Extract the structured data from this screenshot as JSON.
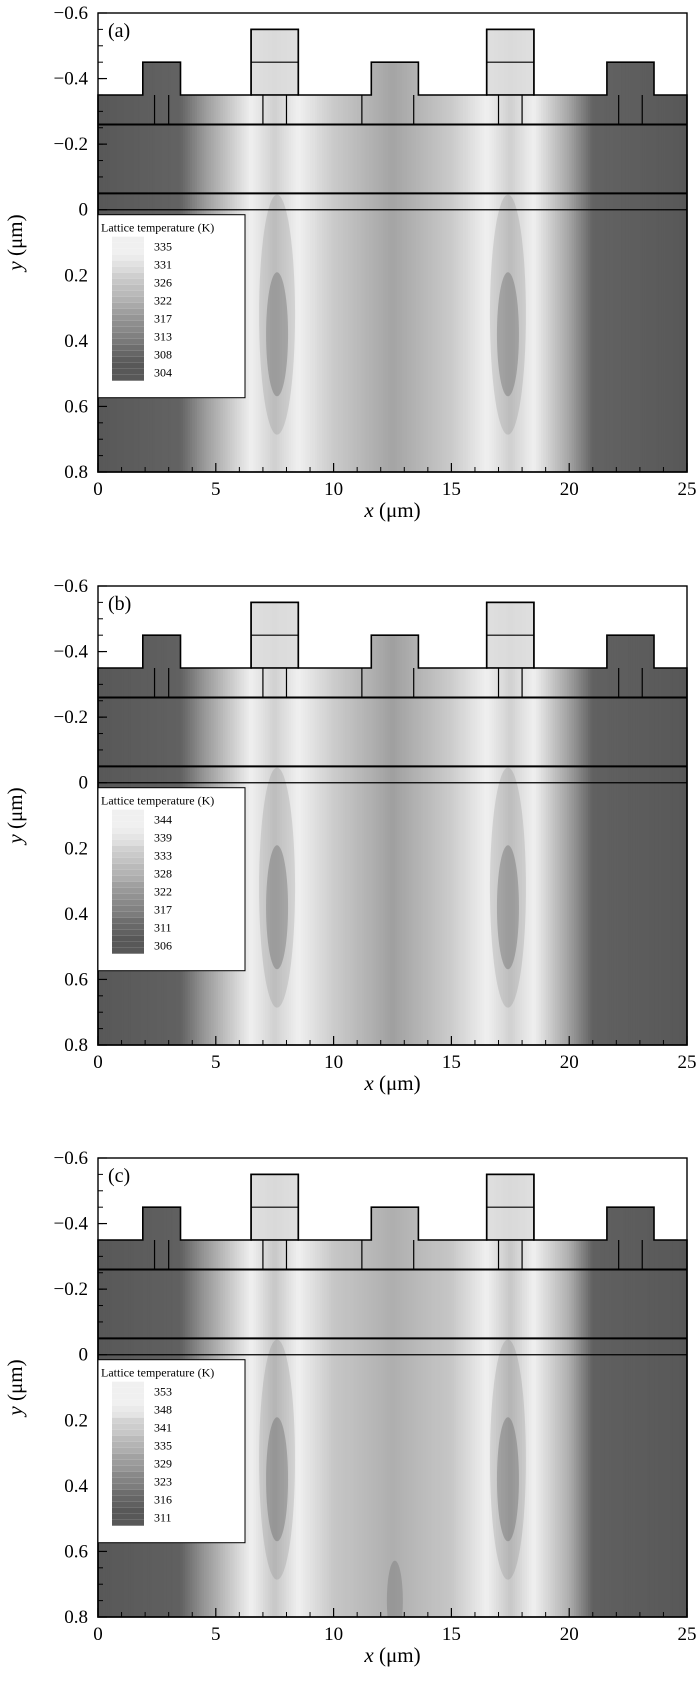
{
  "chart_data": [
    {
      "type": "heatmap",
      "panel_label": "(a)",
      "xlabel_var": "x",
      "xlabel_unit": " (μm)",
      "ylabel_var": "y",
      "ylabel_unit": " (μm)",
      "xlim": [
        0,
        25
      ],
      "ylim": [
        -0.6,
        0.8
      ],
      "x_ticks": [
        0,
        5,
        10,
        15,
        20,
        25
      ],
      "x_tick_labels": [
        "0",
        "5",
        "10",
        "15",
        "20",
        "25"
      ],
      "y_ticks": [
        -0.6,
        -0.4,
        -0.2,
        0,
        0.2,
        0.4,
        0.6,
        0.8
      ],
      "y_tick_labels": [
        "−0.6",
        "−0.4",
        "−0.2",
        "0",
        "0.2",
        "0.4",
        "0.6",
        "0.8"
      ],
      "legend_title": "Lattice temperature (K)",
      "legend_values": [
        "335",
        "331",
        "326",
        "322",
        "317",
        "313",
        "308",
        "304"
      ],
      "temperature_profile": {
        "x": [
          0,
          3.5,
          4.5,
          6.5,
          7.5,
          8.5,
          10,
          12.5,
          15,
          16.5,
          17.5,
          18.5,
          20,
          21,
          25
        ],
        "T": [
          304,
          306,
          316,
          332,
          326,
          332,
          325,
          318,
          325,
          332,
          326,
          332,
          318,
          306,
          304
        ]
      }
    },
    {
      "type": "heatmap",
      "panel_label": "(b)",
      "xlabel_var": "x",
      "xlabel_unit": " (μm)",
      "ylabel_var": "y",
      "ylabel_unit": " (μm)",
      "xlim": [
        0,
        25
      ],
      "ylim": [
        -0.6,
        0.8
      ],
      "x_ticks": [
        0,
        5,
        10,
        15,
        20,
        25
      ],
      "x_tick_labels": [
        "0",
        "5",
        "10",
        "15",
        "20",
        "25"
      ],
      "y_ticks": [
        -0.6,
        -0.4,
        -0.2,
        0,
        0.2,
        0.4,
        0.6,
        0.8
      ],
      "y_tick_labels": [
        "−0.6",
        "−0.4",
        "−0.2",
        "0",
        "0.2",
        "0.4",
        "0.6",
        "0.8"
      ],
      "legend_title": "Lattice temperature (K)",
      "legend_values": [
        "344",
        "339",
        "333",
        "328",
        "322",
        "317",
        "311",
        "306"
      ],
      "temperature_profile": {
        "x": [
          0,
          3.5,
          4.5,
          6.5,
          7.5,
          8.5,
          10,
          12.5,
          15,
          16.5,
          17.5,
          18.5,
          20,
          21,
          25
        ],
        "T": [
          306,
          308,
          320,
          340,
          333,
          340,
          332,
          322,
          332,
          340,
          333,
          340,
          322,
          308,
          306
        ]
      }
    },
    {
      "type": "heatmap",
      "panel_label": "(c)",
      "xlabel_var": "x",
      "xlabel_unit": " (μm)",
      "ylabel_var": "y",
      "ylabel_unit": " (μm)",
      "xlim": [
        0,
        25
      ],
      "ylim": [
        -0.6,
        0.8
      ],
      "x_ticks": [
        0,
        5,
        10,
        15,
        20,
        25
      ],
      "x_tick_labels": [
        "0",
        "5",
        "10",
        "15",
        "20",
        "25"
      ],
      "y_ticks": [
        -0.6,
        -0.4,
        -0.2,
        0,
        0.2,
        0.4,
        0.6,
        0.8
      ],
      "y_tick_labels": [
        "−0.6",
        "−0.4",
        "−0.2",
        "0",
        "0.2",
        "0.4",
        "0.6",
        "0.8"
      ],
      "legend_title": "Lattice temperature (K)",
      "legend_values": [
        "353",
        "348",
        "341",
        "335",
        "329",
        "323",
        "316",
        "311"
      ],
      "temperature_profile": {
        "x": [
          0,
          3.5,
          4.5,
          6.5,
          7.5,
          8.5,
          10,
          12.5,
          15,
          16.5,
          17.5,
          18.5,
          20,
          21,
          25
        ],
        "T": [
          311,
          313,
          326,
          348,
          338,
          348,
          338,
          332,
          338,
          348,
          338,
          348,
          332,
          313,
          311
        ]
      }
    }
  ]
}
